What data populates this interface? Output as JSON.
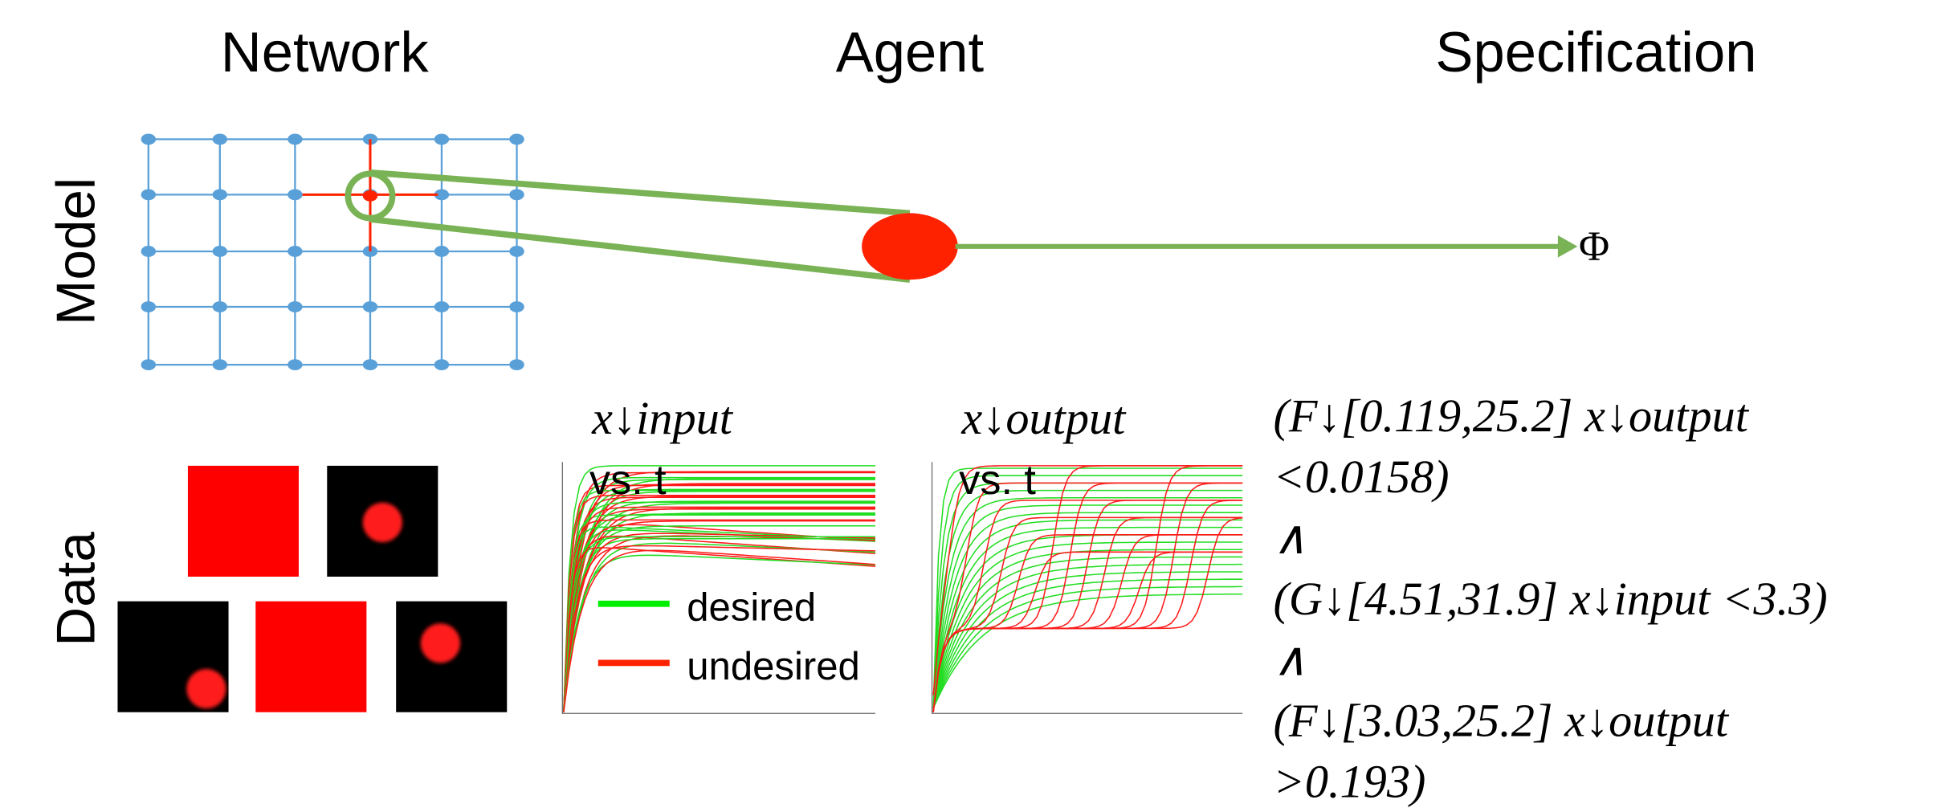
{
  "headers": {
    "network": "Network",
    "agent": "Agent",
    "specification": "Specification"
  },
  "rows": {
    "model": "Model",
    "data": "Data"
  },
  "model": {
    "spec_symbol": "Φ"
  },
  "plots": [
    {
      "title": "x↓input",
      "subtitle": "vs. t"
    },
    {
      "title": "x↓output",
      "subtitle": "vs. t"
    }
  ],
  "legend": {
    "desired": "desired",
    "undesired": "undesired"
  },
  "formula": [
    "(F↓[0.119,25.2] x↓output",
    "<0.0158)",
    "∧",
    "(G↓[4.51,31.9] x↓input <3.3)",
    "∧",
    "(F↓[3.03,25.2] x↓output",
    ">0.193)"
  ]
}
